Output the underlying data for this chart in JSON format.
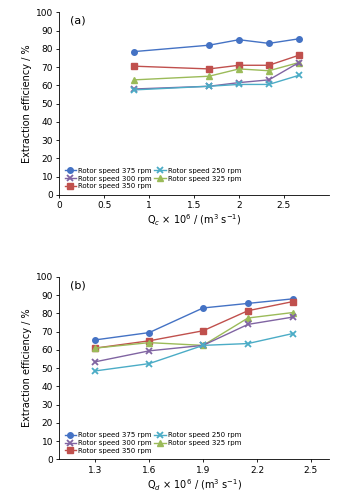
{
  "panel_a": {
    "title": "(a)",
    "xlabel": "Q$_c$ × 10$^6$ / (m$^3$ s$^{-1}$)",
    "ylabel": "Extraction efficiency / %",
    "xlim": [
      0,
      3.0
    ],
    "ylim": [
      0,
      100
    ],
    "xticks": [
      0,
      0.5,
      1.0,
      1.5,
      2.0,
      2.5
    ],
    "xticklabels": [
      "0",
      "0.5",
      "1",
      "1.5",
      "2",
      "2.5"
    ],
    "yticks": [
      0,
      10,
      20,
      30,
      40,
      50,
      60,
      70,
      80,
      90,
      100
    ],
    "series": [
      {
        "label": "Rotor speed 375 rpm",
        "color": "#4472C4",
        "marker": "o",
        "x": [
          0.833,
          1.667,
          2.0,
          2.333,
          2.667
        ],
        "y": [
          78.5,
          82.0,
          85.0,
          83.0,
          85.5
        ]
      },
      {
        "label": "Rotor speed 350 rpm",
        "color": "#C0504D",
        "marker": "s",
        "x": [
          0.833,
          1.667,
          2.0,
          2.333,
          2.667
        ],
        "y": [
          70.5,
          69.0,
          71.0,
          71.0,
          76.5
        ]
      },
      {
        "label": "Rotor speed 325 rpm",
        "color": "#9BBB59",
        "marker": "^",
        "x": [
          0.833,
          1.667,
          2.0,
          2.333,
          2.667
        ],
        "y": [
          63.0,
          65.0,
          69.0,
          68.0,
          72.5
        ]
      },
      {
        "label": "Rotor speed 300 rpm",
        "color": "#8064A2",
        "marker": "x",
        "x": [
          0.833,
          1.667,
          2.0,
          2.333,
          2.667
        ],
        "y": [
          58.0,
          59.5,
          61.5,
          63.0,
          72.5
        ]
      },
      {
        "label": "Rotor speed 250 rpm",
        "color": "#4BACC6",
        "marker": "x",
        "x": [
          0.833,
          1.667,
          2.0,
          2.333,
          2.667
        ],
        "y": [
          57.5,
          59.5,
          60.5,
          60.5,
          65.5
        ]
      }
    ]
  },
  "panel_b": {
    "title": "(b)",
    "xlabel": "Q$_d$ × 10$^6$ / (m$^3$ s$^{-1}$)",
    "ylabel": "Extraction efficiency / %",
    "xlim": [
      1.1,
      2.6
    ],
    "ylim": [
      0,
      100
    ],
    "xticks": [
      1.3,
      1.6,
      1.9,
      2.2,
      2.5
    ],
    "xticklabels": [
      "1.3",
      "1.6",
      "1.9",
      "2.2",
      "2.5"
    ],
    "yticks": [
      0,
      10,
      20,
      30,
      40,
      50,
      60,
      70,
      80,
      90,
      100
    ],
    "series": [
      {
        "label": "Rotor speed 375 rpm",
        "color": "#4472C4",
        "marker": "o",
        "x": [
          1.3,
          1.6,
          1.9,
          2.15,
          2.4
        ],
        "y": [
          65.5,
          69.5,
          83.0,
          85.5,
          88.0
        ]
      },
      {
        "label": "Rotor speed 350 rpm",
        "color": "#C0504D",
        "marker": "s",
        "x": [
          1.3,
          1.6,
          1.9,
          2.15,
          2.4
        ],
        "y": [
          61.0,
          65.0,
          70.5,
          81.5,
          86.5
        ]
      },
      {
        "label": "Rotor speed 325 rpm",
        "color": "#9BBB59",
        "marker": "^",
        "x": [
          1.3,
          1.6,
          1.9,
          2.15,
          2.4
        ],
        "y": [
          61.0,
          64.0,
          62.5,
          77.5,
          80.5
        ]
      },
      {
        "label": "Rotor speed 300 rpm",
        "color": "#8064A2",
        "marker": "x",
        "x": [
          1.3,
          1.6,
          1.9,
          2.15,
          2.4
        ],
        "y": [
          53.5,
          59.5,
          62.5,
          74.0,
          78.0
        ]
      },
      {
        "label": "Rotor speed 250 rpm",
        "color": "#4BACC6",
        "marker": "x",
        "x": [
          1.3,
          1.6,
          1.9,
          2.15,
          2.4
        ],
        "y": [
          48.5,
          52.5,
          62.5,
          63.5,
          69.0
        ]
      }
    ]
  }
}
